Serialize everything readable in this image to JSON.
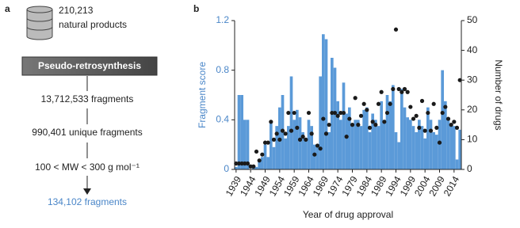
{
  "panel_labels": [
    "a",
    "b"
  ],
  "flow": {
    "source_count": "210,213",
    "source_label": "natural products",
    "process": "Pseudo-retrosynthesis",
    "steps": [
      "13,712,533 fragments",
      "990,401 unique fragments",
      "100 < MW < 300 g mol⁻¹"
    ],
    "result": "134,102 fragments"
  },
  "chart_data": {
    "type": "bar",
    "x_label": "Year of drug approval",
    "y_label": "Fragment score",
    "y2_label": "Number of drugs",
    "x": [
      1939,
      1940,
      1941,
      1942,
      1943,
      1944,
      1945,
      1946,
      1947,
      1948,
      1949,
      1950,
      1951,
      1952,
      1953,
      1954,
      1955,
      1956,
      1957,
      1958,
      1959,
      1960,
      1961,
      1962,
      1963,
      1964,
      1965,
      1966,
      1967,
      1968,
      1969,
      1970,
      1971,
      1972,
      1973,
      1974,
      1975,
      1976,
      1977,
      1978,
      1979,
      1980,
      1981,
      1982,
      1983,
      1984,
      1985,
      1986,
      1987,
      1988,
      1989,
      1990,
      1991,
      1992,
      1993,
      1994,
      1995,
      1996,
      1997,
      1998,
      1999,
      2000,
      2001,
      2002,
      2003,
      2004,
      2005,
      2006,
      2007,
      2008,
      2009,
      2010,
      2011,
      2012,
      2013,
      2014,
      2015,
      2016
    ],
    "series": [
      {
        "type": "bar",
        "color": "#5b9ad8",
        "values": [
          0.02,
          0.6,
          0.6,
          0.4,
          0.4,
          0,
          0.02,
          0.02,
          0.08,
          0.1,
          0.2,
          0.1,
          0.38,
          0.18,
          0.35,
          0.5,
          0.6,
          0.25,
          0.35,
          0.75,
          0.4,
          0.48,
          0.42,
          0.3,
          0.25,
          0.4,
          0.35,
          0.2,
          0.18,
          0.75,
          1.09,
          1.05,
          0.3,
          0.9,
          0.82,
          0.55,
          0.4,
          0.7,
          0.45,
          0.5,
          0.35,
          0.4,
          0.4,
          0.35,
          0.48,
          0.5,
          0.3,
          0.45,
          0.4,
          0.35,
          0.55,
          0.4,
          0.6,
          0.55,
          0.68,
          0.3,
          0.22,
          0.65,
          0.5,
          0.42,
          0.4,
          0.35,
          0.3,
          0.4,
          0.35,
          0.25,
          0.5,
          0.4,
          0.3,
          0.28,
          0.4,
          0.8,
          0.55,
          0.4,
          0.35,
          0.35,
          0.08,
          0.32
        ]
      },
      {
        "type": "scatter",
        "axis": "y2",
        "color": "#1a1a1a",
        "values": [
          2,
          2,
          2,
          2,
          2,
          1,
          1,
          6,
          3,
          5,
          9,
          9,
          16,
          10,
          12,
          10,
          13,
          12,
          19,
          13,
          19,
          14,
          10,
          11,
          10,
          19,
          12,
          5,
          8,
          7,
          17,
          12,
          15,
          19,
          19,
          18,
          19,
          19,
          11,
          17,
          15,
          24,
          15,
          18,
          22,
          20,
          14,
          16,
          15,
          22,
          26,
          16,
          19,
          22,
          27,
          47,
          27,
          26,
          27,
          26,
          21,
          17,
          18,
          14,
          23,
          13,
          19,
          13,
          22,
          14,
          9,
          19,
          21,
          17,
          15,
          16,
          14,
          30
        ]
      }
    ],
    "xlim": [
      1938.5,
      2016.5
    ],
    "xticks": [
      1939,
      1944,
      1949,
      1954,
      1959,
      1964,
      1969,
      1974,
      1979,
      1984,
      1989,
      1994,
      1999,
      2004,
      2009,
      2014
    ],
    "ylim": [
      0,
      1.2
    ],
    "yticks": [
      0,
      0.4,
      0.8,
      1.2
    ],
    "y2lim": [
      0,
      50
    ],
    "y2ticks": [
      0,
      10,
      20,
      30,
      40,
      50
    ],
    "y_color": "#4a86c8"
  }
}
